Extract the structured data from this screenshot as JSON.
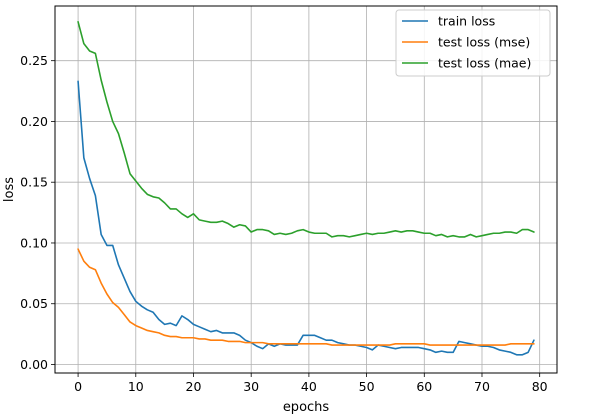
{
  "chart_data": {
    "type": "line",
    "title": "",
    "xlabel": "epochs",
    "ylabel": "loss",
    "xlim": [
      -4,
      83
    ],
    "ylim": [
      -0.007,
      0.295
    ],
    "xticks": [
      0,
      10,
      20,
      30,
      40,
      50,
      60,
      70,
      80
    ],
    "yticks": [
      0.0,
      0.05,
      0.1,
      0.15,
      0.2,
      0.25
    ],
    "grid": true,
    "legend_position": "top-right",
    "x": [
      0,
      1,
      2,
      3,
      4,
      5,
      6,
      7,
      8,
      9,
      10,
      11,
      12,
      13,
      14,
      15,
      16,
      17,
      18,
      19,
      20,
      21,
      22,
      23,
      24,
      25,
      26,
      27,
      28,
      29,
      30,
      31,
      32,
      33,
      34,
      35,
      36,
      37,
      38,
      39,
      40,
      41,
      42,
      43,
      44,
      45,
      46,
      47,
      48,
      49,
      50,
      51,
      52,
      53,
      54,
      55,
      56,
      57,
      58,
      59,
      60,
      61,
      62,
      63,
      64,
      65,
      66,
      67,
      68,
      69,
      70,
      71,
      72,
      73,
      74,
      75,
      76,
      77,
      78,
      79
    ],
    "series": [
      {
        "name": "train loss",
        "color": "#1f77b4",
        "values": [
          0.233,
          0.17,
          0.153,
          0.139,
          0.107,
          0.098,
          0.098,
          0.082,
          0.071,
          0.06,
          0.052,
          0.048,
          0.045,
          0.043,
          0.037,
          0.033,
          0.034,
          0.032,
          0.04,
          0.037,
          0.033,
          0.031,
          0.029,
          0.027,
          0.028,
          0.026,
          0.026,
          0.026,
          0.024,
          0.02,
          0.018,
          0.015,
          0.013,
          0.017,
          0.015,
          0.017,
          0.016,
          0.016,
          0.016,
          0.024,
          0.024,
          0.024,
          0.022,
          0.02,
          0.02,
          0.018,
          0.017,
          0.016,
          0.016,
          0.015,
          0.014,
          0.012,
          0.016,
          0.015,
          0.014,
          0.013,
          0.014,
          0.014,
          0.014,
          0.014,
          0.013,
          0.012,
          0.01,
          0.011,
          0.01,
          0.01,
          0.019,
          0.018,
          0.017,
          0.016,
          0.015,
          0.015,
          0.014,
          0.012,
          0.011,
          0.01,
          0.008,
          0.008,
          0.01,
          0.02
        ]
      },
      {
        "name": "test loss (mse)",
        "color": "#ff7f0e",
        "values": [
          0.095,
          0.085,
          0.08,
          0.078,
          0.067,
          0.058,
          0.051,
          0.047,
          0.041,
          0.035,
          0.032,
          0.03,
          0.028,
          0.027,
          0.026,
          0.024,
          0.023,
          0.023,
          0.022,
          0.022,
          0.022,
          0.021,
          0.021,
          0.02,
          0.02,
          0.02,
          0.019,
          0.019,
          0.019,
          0.018,
          0.018,
          0.018,
          0.018,
          0.017,
          0.017,
          0.017,
          0.017,
          0.017,
          0.017,
          0.017,
          0.017,
          0.017,
          0.017,
          0.017,
          0.016,
          0.016,
          0.016,
          0.016,
          0.016,
          0.016,
          0.016,
          0.016,
          0.016,
          0.016,
          0.016,
          0.017,
          0.017,
          0.017,
          0.017,
          0.017,
          0.017,
          0.016,
          0.016,
          0.016,
          0.016,
          0.016,
          0.016,
          0.016,
          0.016,
          0.016,
          0.016,
          0.016,
          0.016,
          0.016,
          0.016,
          0.017,
          0.017,
          0.017,
          0.017,
          0.017
        ]
      },
      {
        "name": "test loss (mae)",
        "color": "#2ca02c",
        "values": [
          0.282,
          0.264,
          0.258,
          0.256,
          0.234,
          0.216,
          0.2,
          0.19,
          0.174,
          0.157,
          0.151,
          0.145,
          0.14,
          0.138,
          0.137,
          0.133,
          0.128,
          0.128,
          0.124,
          0.121,
          0.124,
          0.119,
          0.118,
          0.117,
          0.117,
          0.118,
          0.116,
          0.113,
          0.115,
          0.114,
          0.109,
          0.111,
          0.111,
          0.11,
          0.107,
          0.108,
          0.107,
          0.108,
          0.11,
          0.111,
          0.109,
          0.108,
          0.108,
          0.108,
          0.105,
          0.106,
          0.106,
          0.105,
          0.106,
          0.107,
          0.108,
          0.107,
          0.108,
          0.108,
          0.109,
          0.11,
          0.109,
          0.11,
          0.11,
          0.109,
          0.108,
          0.108,
          0.106,
          0.107,
          0.105,
          0.106,
          0.105,
          0.105,
          0.107,
          0.105,
          0.106,
          0.107,
          0.108,
          0.108,
          0.109,
          0.109,
          0.108,
          0.111,
          0.111,
          0.109
        ]
      }
    ]
  }
}
